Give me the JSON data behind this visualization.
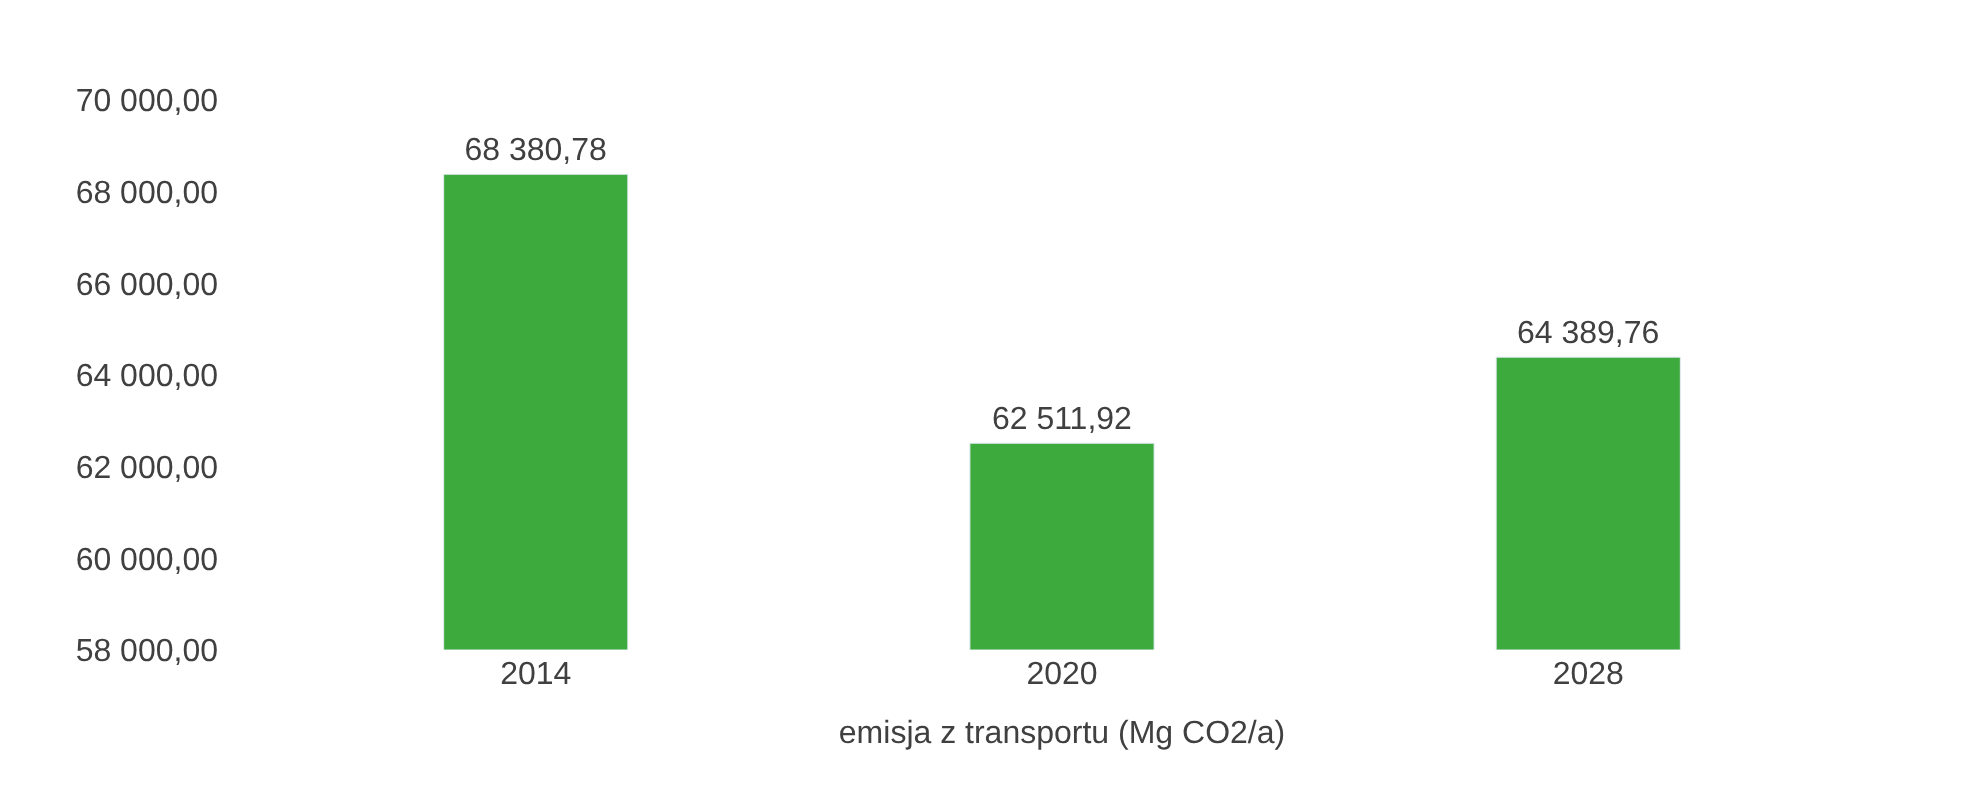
{
  "chart_data": {
    "type": "bar",
    "xlabel": "emisja z transportu (Mg CO2/a)",
    "categories": [
      "2014",
      "2020",
      "2028"
    ],
    "series": [
      {
        "color": "#3caa3c",
        "values": [
          68380.78,
          62511.92,
          64389.76
        ],
        "value_labels": [
          "68 380,78",
          "62 511,92",
          "64 389,76"
        ]
      }
    ],
    "ylim": [
      58000,
      70000
    ],
    "yticks": [
      {
        "value": 58000,
        "label": "58 000,00"
      },
      {
        "value": 60000,
        "label": "60 000,00"
      },
      {
        "value": 62000,
        "label": "62 000,00"
      },
      {
        "value": 64000,
        "label": "64 000,00"
      },
      {
        "value": 66000,
        "label": "66 000,00"
      },
      {
        "value": 68000,
        "label": "68 000,00"
      },
      {
        "value": 70000,
        "label": "70 000,00"
      }
    ],
    "legend": false
  }
}
